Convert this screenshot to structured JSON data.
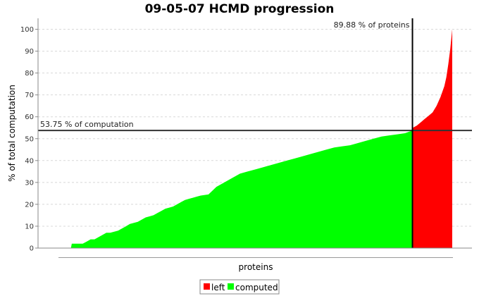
{
  "chart_data": {
    "type": "area",
    "title": "09-05-07 HCMD progression",
    "xlabel": "proteins",
    "ylabel": "% of total computation",
    "xlim": [
      0,
      100
    ],
    "ylim": [
      0,
      105
    ],
    "yticks": [
      0,
      10,
      20,
      30,
      40,
      50,
      60,
      70,
      80,
      90,
      100
    ],
    "grid": true,
    "legend_position": "bottom-center",
    "colors": {
      "left": "#ff0000",
      "computed": "#00ff00",
      "marker": "#333333"
    },
    "series": [
      {
        "name": "computed",
        "x": [
          0,
          3,
          3.2,
          6,
          7,
          8,
          9,
          10,
          11,
          12,
          13,
          14,
          15,
          16,
          17,
          18,
          19,
          20,
          21,
          22,
          23,
          24,
          25,
          26,
          27,
          28,
          29,
          30,
          31,
          32,
          33,
          34,
          35,
          36,
          38,
          40,
          42,
          44,
          45,
          46,
          48,
          50,
          52,
          54,
          56,
          58,
          60,
          62,
          64,
          66,
          68,
          70,
          72,
          74,
          76,
          78,
          80,
          82,
          84,
          86,
          88,
          89.88
        ],
        "values": [
          0,
          0,
          2,
          2,
          3,
          4,
          4,
          5,
          6,
          7,
          7,
          7.5,
          8,
          9,
          10,
          11,
          11.5,
          12,
          13,
          14,
          14.5,
          15,
          16,
          17,
          18,
          18.5,
          19,
          20,
          21,
          22,
          22.5,
          23,
          23.5,
          24,
          24.5,
          28,
          30,
          32,
          33,
          34,
          35,
          36,
          37,
          38,
          39,
          40,
          41,
          42,
          43,
          44,
          45,
          46,
          46.5,
          47,
          48,
          49,
          50,
          51,
          51.5,
          52,
          52.5,
          53.75
        ]
      },
      {
        "name": "left",
        "x": [
          89.88,
          90,
          91,
          92,
          93,
          94,
          95,
          96,
          97,
          98,
          98.5,
          99,
          99.5,
          100
        ],
        "values": [
          53.75,
          55,
          56,
          57.5,
          59,
          60.5,
          62,
          65,
          69,
          74,
          78,
          84,
          91,
          100
        ]
      }
    ],
    "annotations": [
      {
        "label": "89.88 % of proteins",
        "axis": "x",
        "value": 89.88
      },
      {
        "label": "53.75 % of computation",
        "axis": "y",
        "value": 53.75
      }
    ]
  }
}
